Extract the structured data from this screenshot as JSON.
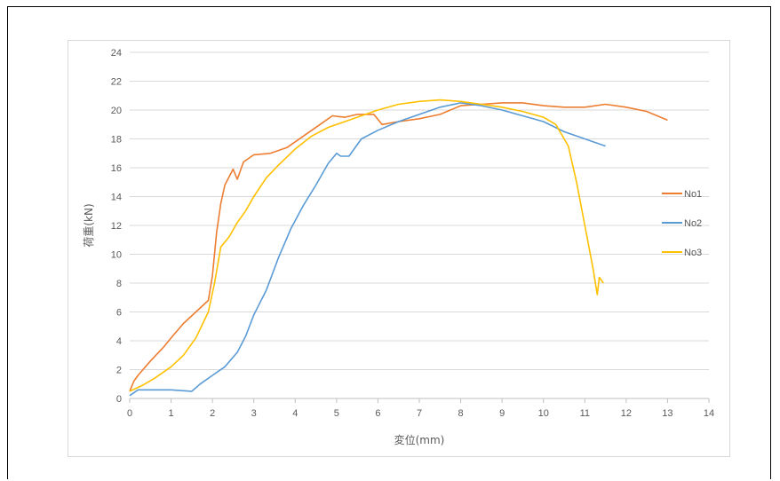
{
  "chart_data": {
    "type": "line",
    "xlabel": "変位(mm)",
    "ylabel": "荷重(kN)",
    "xlim": [
      0,
      14
    ],
    "ylim": [
      0,
      24
    ],
    "xticks": [
      0,
      1,
      2,
      3,
      4,
      5,
      6,
      7,
      8,
      9,
      10,
      11,
      12,
      13,
      14
    ],
    "yticks": [
      0,
      2,
      4,
      6,
      8,
      10,
      12,
      14,
      16,
      18,
      20,
      22,
      24
    ],
    "grid": "horizontal",
    "legend": "right",
    "series": [
      {
        "name": "No1",
        "color": "#ED7D31",
        "points": [
          [
            0,
            0.5
          ],
          [
            0.1,
            1.2
          ],
          [
            0.2,
            1.6
          ],
          [
            0.5,
            2.6
          ],
          [
            0.8,
            3.5
          ],
          [
            1.0,
            4.2
          ],
          [
            1.3,
            5.2
          ],
          [
            1.6,
            6.0
          ],
          [
            1.9,
            6.8
          ],
          [
            2.0,
            8.5
          ],
          [
            2.1,
            11.5
          ],
          [
            2.2,
            13.5
          ],
          [
            2.3,
            14.8
          ],
          [
            2.5,
            15.9
          ],
          [
            2.6,
            15.2
          ],
          [
            2.75,
            16.4
          ],
          [
            3.0,
            16.9
          ],
          [
            3.4,
            17.0
          ],
          [
            3.8,
            17.4
          ],
          [
            4.2,
            18.2
          ],
          [
            4.6,
            19.0
          ],
          [
            4.9,
            19.6
          ],
          [
            5.2,
            19.5
          ],
          [
            5.5,
            19.7
          ],
          [
            5.9,
            19.7
          ],
          [
            6.1,
            19.0
          ],
          [
            6.5,
            19.2
          ],
          [
            7.0,
            19.4
          ],
          [
            7.5,
            19.7
          ],
          [
            8.0,
            20.3
          ],
          [
            8.5,
            20.4
          ],
          [
            9.0,
            20.5
          ],
          [
            9.5,
            20.5
          ],
          [
            10.0,
            20.3
          ],
          [
            10.5,
            20.2
          ],
          [
            11.0,
            20.2
          ],
          [
            11.5,
            20.4
          ],
          [
            12.0,
            20.2
          ],
          [
            12.5,
            19.9
          ],
          [
            13.0,
            19.3
          ]
        ]
      },
      {
        "name": "No2",
        "color": "#5B9BD5",
        "points": [
          [
            0,
            0.2
          ],
          [
            0.2,
            0.6
          ],
          [
            0.5,
            0.6
          ],
          [
            1.0,
            0.6
          ],
          [
            1.5,
            0.5
          ],
          [
            1.7,
            1.0
          ],
          [
            2.0,
            1.6
          ],
          [
            2.3,
            2.2
          ],
          [
            2.6,
            3.2
          ],
          [
            2.8,
            4.3
          ],
          [
            3.0,
            5.8
          ],
          [
            3.3,
            7.5
          ],
          [
            3.6,
            9.8
          ],
          [
            3.9,
            11.8
          ],
          [
            4.2,
            13.4
          ],
          [
            4.5,
            14.8
          ],
          [
            4.8,
            16.3
          ],
          [
            5.0,
            17.0
          ],
          [
            5.1,
            16.8
          ],
          [
            5.3,
            16.8
          ],
          [
            5.6,
            18.0
          ],
          [
            6.0,
            18.6
          ],
          [
            6.5,
            19.2
          ],
          [
            7.0,
            19.7
          ],
          [
            7.5,
            20.2
          ],
          [
            8.0,
            20.5
          ],
          [
            8.5,
            20.3
          ],
          [
            9.0,
            20.0
          ],
          [
            9.5,
            19.6
          ],
          [
            10.0,
            19.2
          ],
          [
            10.5,
            18.5
          ],
          [
            11.0,
            18.0
          ],
          [
            11.5,
            17.5
          ]
        ]
      },
      {
        "name": "No3",
        "color": "#FFC000",
        "points": [
          [
            0,
            0.5
          ],
          [
            0.3,
            0.9
          ],
          [
            0.6,
            1.4
          ],
          [
            1.0,
            2.2
          ],
          [
            1.3,
            3.0
          ],
          [
            1.6,
            4.2
          ],
          [
            1.9,
            6.0
          ],
          [
            2.05,
            8.0
          ],
          [
            2.2,
            10.5
          ],
          [
            2.4,
            11.2
          ],
          [
            2.6,
            12.2
          ],
          [
            2.8,
            13.0
          ],
          [
            3.0,
            14.0
          ],
          [
            3.3,
            15.3
          ],
          [
            3.6,
            16.2
          ],
          [
            4.0,
            17.3
          ],
          [
            4.4,
            18.2
          ],
          [
            4.8,
            18.8
          ],
          [
            5.2,
            19.2
          ],
          [
            5.6,
            19.6
          ],
          [
            6.0,
            20.0
          ],
          [
            6.5,
            20.4
          ],
          [
            7.0,
            20.6
          ],
          [
            7.5,
            20.7
          ],
          [
            8.0,
            20.6
          ],
          [
            8.5,
            20.4
          ],
          [
            9.0,
            20.2
          ],
          [
            9.5,
            19.9
          ],
          [
            10.0,
            19.5
          ],
          [
            10.3,
            19.0
          ],
          [
            10.6,
            17.5
          ],
          [
            10.8,
            15.0
          ],
          [
            11.0,
            12.0
          ],
          [
            11.2,
            9.0
          ],
          [
            11.3,
            7.2
          ],
          [
            11.35,
            8.4
          ],
          [
            11.45,
            8.0
          ]
        ]
      }
    ]
  }
}
